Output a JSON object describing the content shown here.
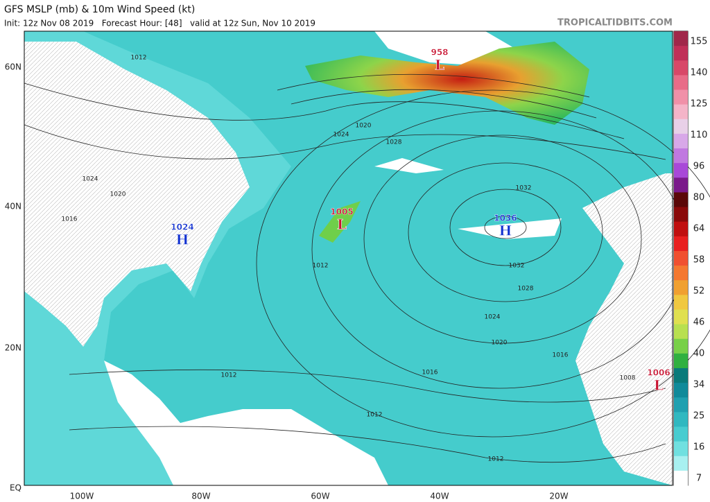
{
  "header": {
    "title": "GFS MSLP (mb) & 10m Wind Speed (kt)",
    "subtitle": "Init: 12z Nov 08 2019   Forecast Hour: [48]   valid at 12z Sun, Nov 10 2019",
    "source": "TROPICALTIDBITS.COM"
  },
  "map": {
    "lat_labels": [
      "60N",
      "40N",
      "20N",
      "EQ"
    ],
    "lon_labels": [
      "100W",
      "80W",
      "60W",
      "40W",
      "20W"
    ],
    "centers": [
      {
        "pressure": "958",
        "symbol": "L"
      },
      {
        "pressure": "1005",
        "symbol": "L"
      },
      {
        "pressure": "1036",
        "symbol": "H"
      },
      {
        "pressure": "1024",
        "symbol": "H"
      },
      {
        "pressure": "1006",
        "symbol": "L"
      }
    ],
    "isobar_labels": [
      "1012",
      "1024",
      "1020",
      "1016",
      "1028",
      "1032",
      "1032",
      "1028",
      "1024",
      "1020",
      "1016",
      "1012",
      "1012",
      "1012",
      "1016",
      "1020",
      "1024",
      "1008",
      "1012"
    ]
  },
  "colorbar": {
    "labels": [
      155,
      140,
      125,
      110,
      96,
      80,
      64,
      58,
      52,
      46,
      40,
      34,
      25,
      16,
      7
    ]
  }
}
